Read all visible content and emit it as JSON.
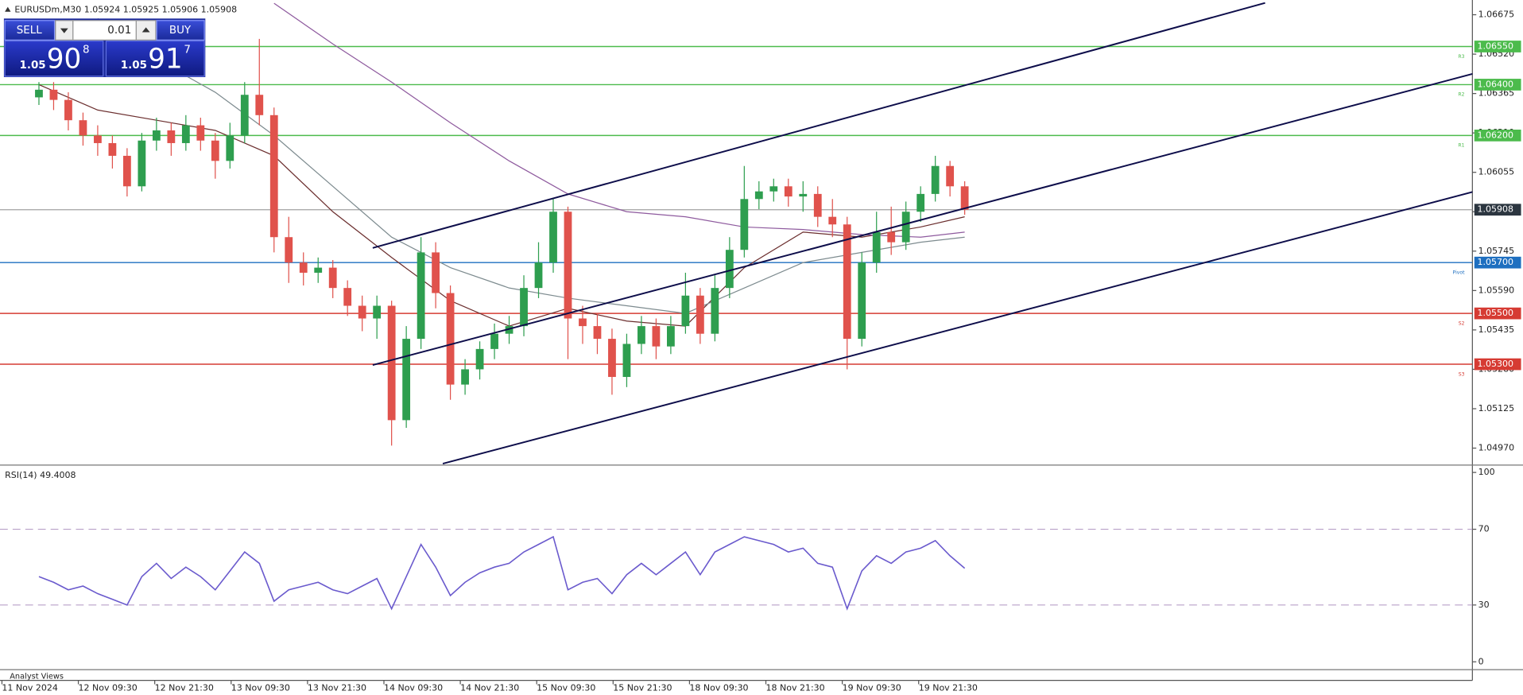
{
  "chart_data": [
    {
      "type": "candlestick",
      "title": "EURUSDm,M30  1.05924 1.05925 1.05906 1.05908",
      "up_color": "#2e9e4f",
      "down_color": "#e0524c",
      "open": [
        1.0635,
        1.0638,
        1.0634,
        1.0626,
        1.062,
        1.0617,
        1.0612,
        1.06,
        1.0618,
        1.0622,
        1.0617,
        1.0624,
        1.0618,
        1.061,
        1.062,
        1.0636,
        1.0628,
        1.058,
        1.057,
        1.0566,
        1.0568,
        1.056,
        1.0553,
        1.0548,
        1.0553,
        1.0508,
        1.054,
        1.0574,
        1.0558,
        1.0522,
        1.0528,
        1.0536,
        1.0542,
        1.0545,
        1.056,
        1.057,
        1.059,
        1.0548,
        1.0545,
        1.054,
        1.0525,
        1.0538,
        1.0545,
        1.0537,
        1.0545,
        1.0557,
        1.0542,
        1.056,
        1.0575,
        1.0595,
        1.0598,
        1.06,
        1.0596,
        1.0597,
        1.0588,
        1.0585,
        1.054,
        1.057,
        1.0582,
        1.0578,
        1.059,
        1.0597,
        1.0608,
        1.06
      ],
      "high": [
        1.0641,
        1.0641,
        1.0637,
        1.0629,
        1.0624,
        1.062,
        1.0615,
        1.0621,
        1.0627,
        1.0625,
        1.0628,
        1.0627,
        1.0621,
        1.0625,
        1.0641,
        1.0658,
        1.0631,
        1.0588,
        1.0574,
        1.0572,
        1.0571,
        1.0563,
        1.0557,
        1.0557,
        1.0555,
        1.0545,
        1.058,
        1.0578,
        1.0561,
        1.0532,
        1.0539,
        1.0546,
        1.0549,
        1.0565,
        1.0578,
        1.0595,
        1.0592,
        1.0553,
        1.055,
        1.0544,
        1.0542,
        1.0549,
        1.0548,
        1.0549,
        1.0566,
        1.056,
        1.0565,
        1.058,
        1.0608,
        1.0602,
        1.0603,
        1.0603,
        1.0602,
        1.06,
        1.0595,
        1.0588,
        1.0574,
        1.059,
        1.0592,
        1.0594,
        1.06,
        1.0612,
        1.061,
        1.0602
      ],
      "low": [
        1.0632,
        1.063,
        1.0622,
        1.0616,
        1.0612,
        1.0607,
        1.0596,
        1.0598,
        1.0614,
        1.0612,
        1.0614,
        1.0614,
        1.0603,
        1.0607,
        1.0617,
        1.0624,
        1.0574,
        1.0562,
        1.0561,
        1.0562,
        1.0556,
        1.0549,
        1.0543,
        1.054,
        1.0498,
        1.0505,
        1.0536,
        1.0552,
        1.0516,
        1.0518,
        1.0524,
        1.0532,
        1.0538,
        1.0541,
        1.0556,
        1.0566,
        1.0532,
        1.0538,
        1.0534,
        1.0518,
        1.0521,
        1.0534,
        1.0532,
        1.0534,
        1.0542,
        1.0538,
        1.0539,
        1.0556,
        1.0572,
        1.0591,
        1.0594,
        1.0592,
        1.059,
        1.0584,
        1.058,
        1.0528,
        1.0537,
        1.0566,
        1.0573,
        1.0575,
        1.0586,
        1.0594,
        1.0596,
        1.05888
      ],
      "close": [
        1.0638,
        1.0634,
        1.0626,
        1.062,
        1.0617,
        1.0612,
        1.06,
        1.0618,
        1.0622,
        1.0617,
        1.0624,
        1.0618,
        1.061,
        1.062,
        1.0636,
        1.0628,
        1.058,
        1.057,
        1.0566,
        1.0568,
        1.056,
        1.0553,
        1.0548,
        1.0553,
        1.0508,
        1.054,
        1.0574,
        1.0558,
        1.0522,
        1.0528,
        1.0536,
        1.0542,
        1.0545,
        1.056,
        1.057,
        1.059,
        1.0548,
        1.0545,
        1.054,
        1.0525,
        1.0538,
        1.0545,
        1.0537,
        1.0545,
        1.0557,
        1.0542,
        1.056,
        1.0575,
        1.0595,
        1.0598,
        1.06,
        1.0596,
        1.0597,
        1.0588,
        1.0585,
        1.054,
        1.057,
        1.0582,
        1.0578,
        1.059,
        1.0597,
        1.0608,
        1.06,
        1.05908
      ],
      "moving_averages": [
        {
          "color": "#6b2e2e",
          "x": [
            0,
            4,
            8,
            12,
            16,
            20,
            24,
            28,
            32,
            36,
            40,
            44,
            48,
            52,
            56,
            60,
            63
          ],
          "values": [
            1.064,
            1.063,
            1.0626,
            1.0622,
            1.0612,
            1.059,
            1.0572,
            1.0555,
            1.0545,
            1.0552,
            1.0547,
            1.0545,
            1.0568,
            1.0582,
            1.058,
            1.0584,
            1.0588
          ]
        },
        {
          "color": "#8e5a9e",
          "x": [
            0,
            4,
            8,
            12,
            16,
            20,
            24,
            28,
            32,
            36,
            40,
            44,
            48,
            52,
            56,
            60,
            63
          ],
          "values": [
            null,
            null,
            null,
            null,
            1.0672,
            1.0656,
            1.0641,
            1.0625,
            1.061,
            1.0597,
            1.059,
            1.0588,
            1.0584,
            1.0583,
            1.0581,
            1.058,
            1.0582
          ]
        },
        {
          "color": "#7d8b8f",
          "x": [
            0,
            4,
            8,
            12,
            16,
            20,
            24,
            28,
            32,
            36,
            40,
            44,
            48,
            52,
            56,
            60,
            63
          ],
          "values": [
            null,
            1.0666,
            1.065,
            1.0637,
            1.062,
            1.06,
            1.058,
            1.0568,
            1.056,
            1.0556,
            1.0553,
            1.055,
            1.056,
            1.057,
            1.0574,
            1.0578,
            1.058
          ]
        }
      ],
      "ylim": [
        1.04905,
        1.06733
      ],
      "yticks": [
        1.06675,
        {
          "value": 1.0652,
          "label": "1.06520"
        },
        1.06365,
        {
          "value": 1.0621,
          "label": "1.06210"
        },
        1.06055,
        {
          "value": 1.059,
          "label": "1.05900"
        },
        1.05745,
        {
          "value": 1.0559,
          "label": "1.05590"
        },
        1.05435,
        {
          "value": 1.0528,
          "label": "1.05280"
        },
        1.05125,
        {
          "value": 1.0497,
          "label": "1.04970"
        }
      ],
      "levels": [
        {
          "name": "R3",
          "value": 1.0655,
          "label": "1.06550",
          "color": "#4cbb4c"
        },
        {
          "name": "R2",
          "value": 1.064,
          "label": "1.06400",
          "color": "#4cbb4c"
        },
        {
          "name": "R1",
          "value": 1.062,
          "label": "1.06200",
          "color": "#4cbb4c"
        },
        {
          "name": "Pivot",
          "value": 1.057,
          "label": "1.05700",
          "color": "#1e6fc0"
        },
        {
          "name": "S2",
          "value": 1.055,
          "label": "1.05500",
          "color": "#d63b33"
        },
        {
          "name": "S3",
          "value": 1.053,
          "label": "1.05300",
          "color": "#d63b33"
        }
      ],
      "current_price": 1.05908
    },
    {
      "type": "line",
      "title": "RSI(14) 49.4008",
      "color": "#6a5acd",
      "values": [
        45,
        42,
        38,
        40,
        36,
        33,
        30,
        45,
        52,
        44,
        50,
        45,
        38,
        48,
        58,
        52,
        32,
        38,
        40,
        42,
        38,
        36,
        40,
        44,
        28,
        45,
        62,
        50,
        35,
        42,
        47,
        50,
        52,
        58,
        62,
        66,
        38,
        42,
        44,
        36,
        46,
        52,
        46,
        52,
        58,
        46,
        58,
        62,
        66,
        64,
        62,
        58,
        60,
        52,
        50,
        28,
        48,
        56,
        52,
        58,
        60,
        64,
        56,
        49.4
      ],
      "ylim": [
        0,
        100
      ],
      "yticks": [
        0,
        30,
        70,
        100
      ],
      "dashed_levels": [
        30,
        70
      ]
    }
  ],
  "time_axis": [
    "11 Nov 2024",
    "12 Nov 09:30",
    "12 Nov 21:30",
    "13 Nov 09:30",
    "13 Nov 21:30",
    "14 Nov 09:30",
    "14 Nov 21:30",
    "15 Nov 09:30",
    "15 Nov 21:30",
    "18 Nov 09:30",
    "18 Nov 21:30",
    "19 Nov 09:30",
    "19 Nov 21:30"
  ],
  "trade_panel": {
    "sell": "SELL",
    "buy": "BUY",
    "volume": "0.01",
    "sell_price": {
      "base": "1.05",
      "big": "90",
      "pip": "8"
    },
    "buy_price": {
      "base": "1.05",
      "big": "91",
      "pip": "7"
    }
  },
  "footer": "Analyst Views"
}
